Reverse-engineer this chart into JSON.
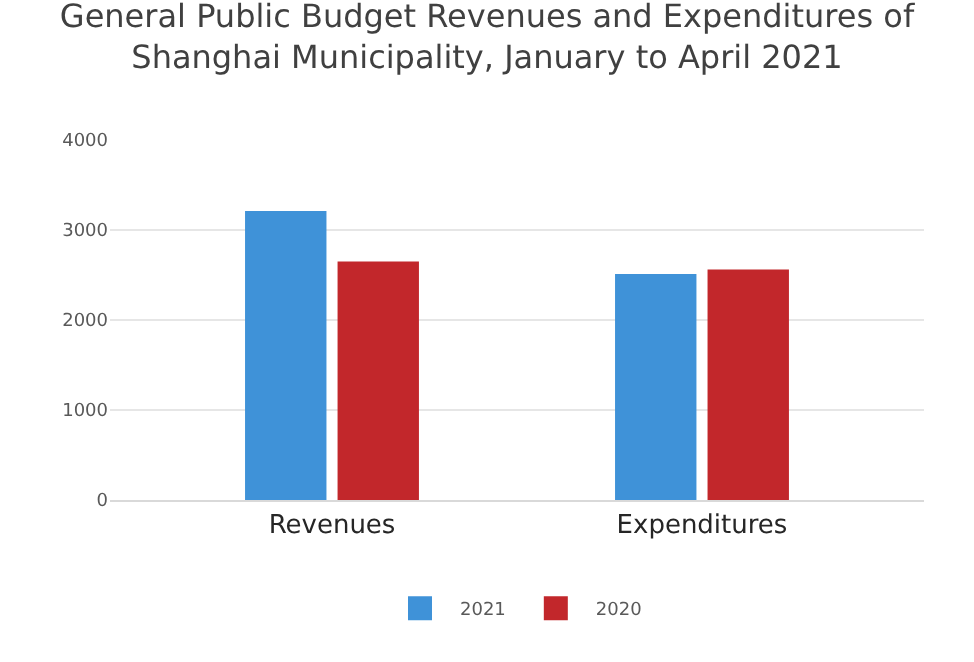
{
  "chart_data": {
    "type": "bar",
    "title": "General Public Budget Revenues and Expenditures of Shanghai Municipality, January to April 2021",
    "categories": [
      "Revenues",
      "Expenditures"
    ],
    "series": [
      {
        "name": "2021",
        "color": "#3f92d8",
        "values": [
          3210,
          2510
        ]
      },
      {
        "name": "2020",
        "color": "#c2272b",
        "values": [
          2650,
          2560
        ]
      }
    ],
    "ylim": [
      0,
      4000
    ],
    "yticks": [
      0,
      1000,
      2000,
      3000,
      4000
    ],
    "grid": "y",
    "legend": "bottom"
  }
}
